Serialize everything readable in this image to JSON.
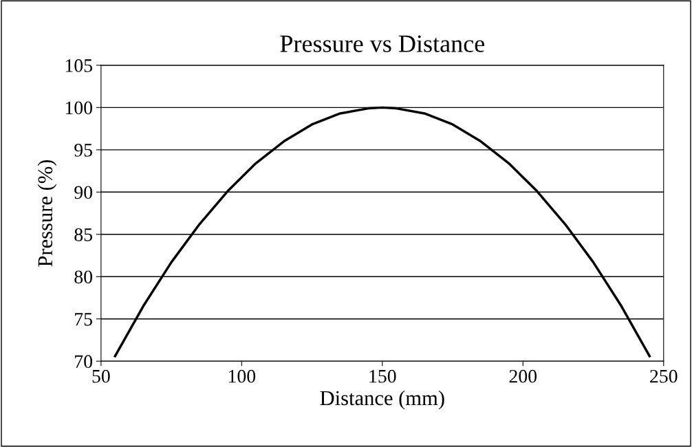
{
  "chart_data": {
    "type": "line",
    "title": "Pressure vs Distance",
    "xlabel": "Distance (mm)",
    "ylabel": "Pressure (%)",
    "x": [
      55,
      65,
      75,
      85,
      95,
      105,
      115,
      125,
      135,
      145,
      150,
      155,
      165,
      175,
      185,
      195,
      205,
      215,
      225,
      235,
      245
    ],
    "series": [
      {
        "color": "#000000",
        "values": [
          70.6,
          76.5,
          81.7,
          86.2,
          90.1,
          93.4,
          96.0,
          98.0,
          99.3,
          99.9,
          100,
          99.9,
          99.3,
          98.0,
          96.0,
          93.4,
          90.1,
          86.2,
          81.7,
          76.5,
          70.6
        ]
      }
    ],
    "xlim": [
      50,
      250
    ],
    "xticks": [
      50,
      100,
      150,
      200,
      250
    ],
    "ylim": [
      70,
      105
    ],
    "yticks": [
      70,
      75,
      80,
      85,
      90,
      95,
      100,
      105
    ],
    "grid": "y",
    "marker": "none",
    "line_style": "solid",
    "legend": false
  }
}
